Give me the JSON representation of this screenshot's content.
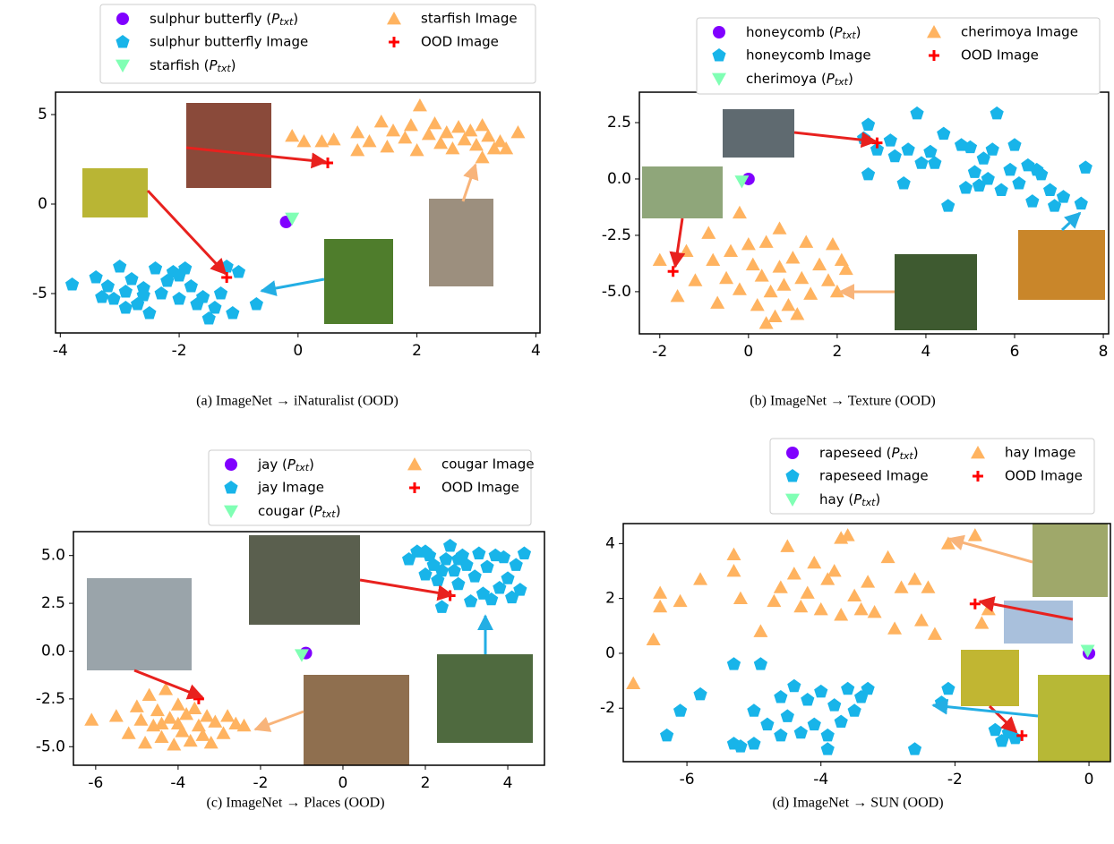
{
  "chart_data": [
    {
      "type": "scatter",
      "title": "(a) ImageNet → iNaturalist (OOD)",
      "xlim": [
        -4.08,
        4.07
      ],
      "ylim": [
        -7.2,
        6.25
      ],
      "xticks": [
        -4,
        -2,
        0,
        2,
        4
      ],
      "yticks": [
        -5,
        0,
        5
      ],
      "series": [
        {
          "name": "sulphur butterfly (Ptxt)",
          "color": "#8000ff",
          "marker": "circle",
          "x": [
            -0.2
          ],
          "y": [
            -1.0
          ]
        },
        {
          "name": "sulphur butterfly Image",
          "color": "#18b4e9",
          "marker": "pentagon",
          "x": [
            -3.8,
            -3.4,
            -3.2,
            -3.1,
            -3.0,
            -2.9,
            -2.8,
            -2.7,
            -2.6,
            -2.5,
            -2.4,
            -2.3,
            -2.2,
            -2.1,
            -2.0,
            -1.9,
            -1.8,
            -1.7,
            -1.6,
            -1.5,
            -1.4,
            -1.3,
            -1.2,
            -1.1,
            -1.0,
            -0.7,
            -2.9,
            -2.6,
            -3.3,
            -2.0
          ],
          "y": [
            -4.5,
            -4.1,
            -4.6,
            -5.3,
            -3.5,
            -4.9,
            -4.2,
            -5.6,
            -4.7,
            -6.1,
            -3.6,
            -5.0,
            -4.3,
            -3.8,
            -5.3,
            -3.6,
            -4.6,
            -5.6,
            -5.2,
            -6.4,
            -5.8,
            -5.0,
            -3.5,
            -6.1,
            -3.8,
            -5.6,
            -5.8,
            -5.1,
            -5.2,
            -4.0
          ]
        },
        {
          "name": "starfish (Ptxt)",
          "color": "#80ffb4",
          "marker": "triangle-down",
          "x": [
            -0.1
          ],
          "y": [
            -0.8
          ]
        },
        {
          "name": "starfish Image",
          "color": "#ffb360",
          "marker": "triangle",
          "x": [
            -0.1,
            0.1,
            0.4,
            0.6,
            1.0,
            1.0,
            1.2,
            1.4,
            1.5,
            1.6,
            1.8,
            1.9,
            2.0,
            2.05,
            2.2,
            2.3,
            2.4,
            2.5,
            2.6,
            2.7,
            2.8,
            2.9,
            3.0,
            3.1,
            3.2,
            3.3,
            3.4,
            3.5,
            3.7,
            3.1
          ],
          "y": [
            3.8,
            3.5,
            3.5,
            3.6,
            3.0,
            4.0,
            3.5,
            4.6,
            3.2,
            4.1,
            3.7,
            4.4,
            3.0,
            5.5,
            3.9,
            4.5,
            3.4,
            4.0,
            3.1,
            4.3,
            3.6,
            4.1,
            3.3,
            4.4,
            3.8,
            3.1,
            3.5,
            3.1,
            4.0,
            2.6
          ]
        },
        {
          "name": "OOD Image",
          "color": "#ff0000",
          "marker": "plus",
          "x": [
            0.5,
            -1.2
          ],
          "y": [
            2.3,
            -4.1
          ]
        }
      ]
    },
    {
      "type": "scatter",
      "title": "(b) ImageNet → Texture (OOD)",
      "xlim": [
        -2.46,
        8.12
      ],
      "ylim": [
        -6.87,
        3.85
      ],
      "xticks": [
        -2,
        0,
        2,
        4,
        6,
        8
      ],
      "yticks": [
        {
          "value": -5,
          "label": "-5.0"
        },
        -2.5,
        {
          "value": 0,
          "label": "0.0"
        },
        2.5
      ],
      "series": [
        {
          "name": "honeycomb (Ptxt)",
          "color": "#8000ff",
          "marker": "circle",
          "x": [
            0.0
          ],
          "y": [
            0.0
          ]
        },
        {
          "name": "honeycomb Image",
          "color": "#18b4e9",
          "marker": "pentagon",
          "x": [
            2.6,
            2.7,
            2.9,
            2.7,
            3.2,
            3.3,
            3.5,
            3.6,
            3.8,
            3.9,
            4.1,
            4.2,
            4.4,
            4.5,
            4.8,
            4.9,
            5.0,
            5.1,
            5.2,
            5.3,
            5.5,
            5.6,
            5.7,
            5.9,
            6.0,
            6.1,
            6.3,
            6.4,
            6.6,
            6.8,
            6.9,
            7.1,
            7.5,
            7.6,
            5.4,
            6.5
          ],
          "y": [
            1.8,
            2.4,
            1.3,
            0.2,
            1.7,
            1.0,
            -0.2,
            1.3,
            2.9,
            0.7,
            1.2,
            0.7,
            2.0,
            -1.2,
            1.5,
            -0.4,
            1.4,
            0.3,
            -0.3,
            0.9,
            1.3,
            2.9,
            -0.5,
            0.4,
            1.5,
            -0.2,
            0.6,
            -1.0,
            0.2,
            -0.5,
            -1.2,
            -0.8,
            -1.1,
            0.5,
            0.0,
            0.4
          ]
        },
        {
          "name": "cherimoya (Ptxt)",
          "color": "#80ffb4",
          "marker": "triangle-down",
          "x": [
            -0.15
          ],
          "y": [
            -0.1
          ]
        },
        {
          "name": "cherimoya Image",
          "color": "#ffb360",
          "marker": "triangle",
          "x": [
            -2.0,
            -1.6,
            -1.4,
            -1.2,
            -0.9,
            -0.8,
            -0.7,
            -0.5,
            -0.4,
            -0.2,
            0.0,
            0.1,
            0.2,
            0.3,
            0.4,
            0.5,
            0.6,
            0.7,
            0.7,
            0.8,
            0.9,
            1.0,
            1.2,
            1.3,
            1.4,
            1.6,
            1.8,
            1.9,
            2.0,
            2.1,
            2.2,
            -0.2,
            1.1,
            0.4
          ],
          "y": [
            -3.6,
            -5.2,
            -3.2,
            -4.5,
            -2.4,
            -3.6,
            -5.5,
            -4.4,
            -3.2,
            -4.9,
            -2.9,
            -3.8,
            -5.6,
            -4.3,
            -2.8,
            -5.0,
            -6.1,
            -2.2,
            -3.9,
            -4.7,
            -5.6,
            -3.5,
            -4.4,
            -2.8,
            -5.1,
            -3.8,
            -4.5,
            -2.9,
            -5.0,
            -3.6,
            -4.0,
            -1.5,
            -6.0,
            -6.4
          ]
        },
        {
          "name": "OOD Image",
          "color": "#ff0000",
          "marker": "plus",
          "x": [
            2.9,
            -1.7
          ],
          "y": [
            1.6,
            -4.1
          ]
        }
      ]
    },
    {
      "type": "scatter",
      "title": "(c) ImageNet → Places (OOD)",
      "xlim": [
        -6.54,
        4.89
      ],
      "ylim": [
        -5.97,
        6.25
      ],
      "xticks": [
        -6,
        -4,
        -2,
        0,
        2,
        4
      ],
      "yticks": [
        {
          "value": -5,
          "label": "-5.0"
        },
        -2.5,
        {
          "value": 0,
          "label": "0.0"
        },
        2.5,
        {
          "value": 5,
          "label": "5.0"
        }
      ],
      "series": [
        {
          "name": "jay (Ptxt)",
          "color": "#8000ff",
          "marker": "circle",
          "x": [
            -0.9
          ],
          "y": [
            -0.1
          ]
        },
        {
          "name": "jay Image",
          "color": "#18b4e9",
          "marker": "pentagon",
          "x": [
            1.6,
            1.8,
            2.0,
            2.1,
            2.2,
            2.3,
            2.4,
            2.5,
            2.6,
            2.7,
            2.8,
            2.9,
            3.0,
            3.1,
            3.2,
            3.3,
            3.4,
            3.5,
            3.6,
            3.8,
            3.9,
            4.0,
            4.1,
            4.2,
            4.3,
            4.4,
            2.4,
            2.8,
            2.0,
            3.7
          ],
          "y": [
            4.8,
            5.2,
            4.0,
            5.0,
            4.5,
            3.7,
            2.3,
            4.8,
            5.5,
            4.2,
            3.5,
            5.0,
            4.5,
            2.6,
            3.9,
            5.1,
            3.0,
            4.4,
            2.7,
            3.3,
            4.9,
            3.8,
            2.8,
            4.5,
            3.2,
            5.1,
            4.2,
            4.8,
            5.2,
            5.0
          ]
        },
        {
          "name": "cougar (Ptxt)",
          "color": "#80ffb4",
          "marker": "triangle-down",
          "x": [
            -1.0
          ],
          "y": [
            -0.2
          ]
        },
        {
          "name": "cougar Image",
          "color": "#ffb360",
          "marker": "triangle",
          "x": [
            -6.1,
            -5.5,
            -5.2,
            -5.0,
            -4.9,
            -4.8,
            -4.7,
            -4.6,
            -4.5,
            -4.4,
            -4.3,
            -4.2,
            -4.1,
            -4.0,
            -3.9,
            -3.8,
            -3.7,
            -3.6,
            -3.5,
            -3.4,
            -3.3,
            -3.2,
            -3.1,
            -2.9,
            -2.8,
            -2.6,
            -2.4,
            -4.4,
            -4.0
          ],
          "y": [
            -3.6,
            -3.4,
            -4.3,
            -2.9,
            -3.6,
            -4.8,
            -2.3,
            -3.9,
            -3.1,
            -4.5,
            -2.0,
            -3.5,
            -4.9,
            -2.8,
            -4.2,
            -3.3,
            -4.7,
            -3.0,
            -3.9,
            -4.4,
            -3.4,
            -4.8,
            -3.7,
            -4.3,
            -3.4,
            -3.8,
            -3.9,
            -3.8,
            -3.8
          ]
        },
        {
          "name": "OOD Image",
          "color": "#ff0000",
          "marker": "plus",
          "x": [
            2.6,
            -3.5
          ],
          "y": [
            2.9,
            -2.5
          ]
        }
      ]
    },
    {
      "type": "scatter",
      "title": "(d) ImageNet → SUN (OOD)",
      "xlim": [
        -6.95,
        0.32
      ],
      "ylim": [
        -3.95,
        4.73
      ],
      "xticks": [
        -6,
        -4,
        -2,
        0
      ],
      "yticks": [
        -2,
        0,
        2,
        4
      ],
      "series": [
        {
          "name": "rapeseed (Ptxt)",
          "color": "#8000ff",
          "marker": "circle",
          "x": [
            0.0
          ],
          "y": [
            0.0
          ]
        },
        {
          "name": "rapeseed Image",
          "color": "#18b4e9",
          "marker": "pentagon",
          "x": [
            -6.3,
            -6.1,
            -5.8,
            -5.3,
            -5.2,
            -5.0,
            -5.0,
            -4.9,
            -4.6,
            -4.5,
            -4.4,
            -4.3,
            -4.2,
            -4.1,
            -4.0,
            -3.9,
            -3.8,
            -3.7,
            -3.6,
            -3.5,
            -3.4,
            -3.3,
            -3.9,
            -5.3,
            -2.6,
            -2.2,
            -2.1,
            -1.4,
            -1.3,
            -1.2,
            -1.1,
            -4.6,
            -4.8
          ],
          "y": [
            -3.0,
            -2.1,
            -1.5,
            -3.3,
            -3.4,
            -3.3,
            -2.1,
            -0.4,
            -1.6,
            -2.3,
            -1.2,
            -2.9,
            -1.7,
            -2.6,
            -1.4,
            -3.0,
            -1.9,
            -2.5,
            -1.3,
            -2.1,
            -1.6,
            -1.3,
            -3.5,
            -0.4,
            -3.5,
            -1.8,
            -1.3,
            -2.8,
            -3.2,
            -2.9,
            -3.1,
            -3.0,
            -2.6
          ]
        },
        {
          "name": "hay (Ptxt)",
          "color": "#80ffb4",
          "marker": "triangle-down",
          "x": [
            -0.02
          ],
          "y": [
            0.1
          ]
        },
        {
          "name": "hay Image",
          "color": "#ffb360",
          "marker": "triangle",
          "x": [
            -6.8,
            -6.5,
            -6.4,
            -6.4,
            -6.1,
            -5.8,
            -5.3,
            -5.3,
            -5.2,
            -4.9,
            -4.6,
            -4.5,
            -4.4,
            -4.3,
            -4.2,
            -4.1,
            -4.0,
            -3.9,
            -3.8,
            -3.7,
            -3.6,
            -3.5,
            -3.4,
            -3.3,
            -3.2,
            -3.0,
            -2.9,
            -2.8,
            -2.6,
            -2.5,
            -2.4,
            -2.3,
            -2.1,
            -1.7,
            -1.6,
            -1.5,
            -4.7,
            -3.7
          ],
          "y": [
            -1.1,
            0.5,
            1.7,
            2.2,
            1.9,
            2.7,
            3.6,
            3.0,
            2.0,
            0.8,
            2.4,
            3.9,
            2.9,
            1.7,
            2.2,
            3.3,
            1.6,
            2.7,
            3.0,
            1.4,
            4.3,
            2.1,
            1.6,
            2.6,
            1.5,
            3.5,
            0.9,
            2.4,
            2.7,
            1.2,
            2.4,
            0.7,
            4.0,
            4.3,
            1.1,
            1.6,
            1.9,
            4.2
          ]
        },
        {
          "name": "OOD Image",
          "color": "#ff0000",
          "marker": "plus",
          "x": [
            -1.7,
            -1.0
          ],
          "y": [
            1.8,
            -3.0
          ]
        }
      ]
    }
  ]
}
